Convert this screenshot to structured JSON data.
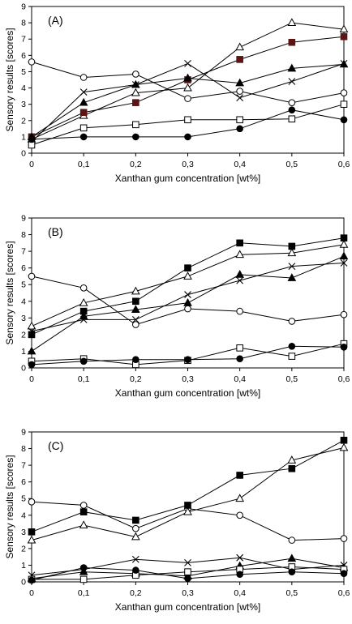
{
  "chart_data": [
    {
      "type": "line",
      "panel_label": "(A)",
      "xlabel": "Xanthan gum concentration [wt%]",
      "ylabel": "Sensory results [scores]",
      "x": [
        0,
        0.1,
        0.2,
        0.3,
        0.4,
        0.5,
        0.6
      ],
      "x_tick_labels": [
        "0",
        "0,1",
        "0,2",
        "0,3",
        "0,4",
        "0,5",
        "0,6"
      ],
      "ylim": [
        0,
        9
      ],
      "y_ticks": [
        "0",
        "1",
        "2",
        "3",
        "4",
        "5",
        "6",
        "7",
        "8",
        "9"
      ],
      "grid": false,
      "series": [
        {
          "marker": "circle-open",
          "values": [
            5.6,
            4.65,
            4.85,
            3.35,
            3.8,
            3.1,
            3.7
          ]
        },
        {
          "marker": "triangle-open",
          "values": [
            0.85,
            2.3,
            3.7,
            4.0,
            6.5,
            8.0,
            7.6
          ]
        },
        {
          "marker": "square-filled",
          "color": "#5a1515",
          "values": [
            1.0,
            2.5,
            3.1,
            4.5,
            5.75,
            6.8,
            7.15
          ]
        },
        {
          "marker": "triangle-filled",
          "values": [
            1.0,
            3.1,
            4.2,
            4.6,
            4.3,
            5.2,
            5.45
          ]
        },
        {
          "marker": "cross",
          "values": [
            0.7,
            3.75,
            4.2,
            5.5,
            3.4,
            4.4,
            5.5
          ]
        },
        {
          "marker": "square-open",
          "values": [
            0.5,
            1.55,
            1.75,
            2.05,
            2.05,
            2.1,
            3.0
          ]
        },
        {
          "marker": "circle-filled",
          "values": [
            0.85,
            1.0,
            1.0,
            1.0,
            1.5,
            2.65,
            2.05
          ]
        }
      ]
    },
    {
      "type": "line",
      "panel_label": "(B)",
      "xlabel": "Xanthan gum concentration [wt%]",
      "ylabel": "Sensory results [scores]",
      "x": [
        0,
        0.1,
        0.2,
        0.3,
        0.4,
        0.5,
        0.6
      ],
      "x_tick_labels": [
        "0",
        "0,1",
        "0,2",
        "0,3",
        "0,4",
        "0,5",
        "0,6"
      ],
      "ylim": [
        0,
        9
      ],
      "y_ticks": [
        "0",
        "1",
        "2",
        "3",
        "4",
        "5",
        "6",
        "7",
        "8",
        "9"
      ],
      "grid": false,
      "series": [
        {
          "marker": "circle-open",
          "values": [
            5.5,
            4.8,
            2.6,
            3.55,
            3.4,
            2.8,
            3.2
          ]
        },
        {
          "marker": "triangle-open",
          "values": [
            2.5,
            3.9,
            4.6,
            5.5,
            6.8,
            6.9,
            7.4
          ]
        },
        {
          "marker": "square-filled",
          "values": [
            2.0,
            3.4,
            4.0,
            6.0,
            7.5,
            7.3,
            7.8
          ]
        },
        {
          "marker": "triangle-filled",
          "values": [
            1.0,
            3.1,
            3.5,
            3.9,
            5.6,
            5.4,
            6.7
          ]
        },
        {
          "marker": "cross",
          "values": [
            2.2,
            2.9,
            2.9,
            4.4,
            5.25,
            6.1,
            6.3
          ]
        },
        {
          "marker": "square-open",
          "values": [
            0.4,
            0.55,
            0.2,
            0.45,
            1.2,
            0.7,
            1.45
          ]
        },
        {
          "marker": "circle-filled",
          "values": [
            0.2,
            0.4,
            0.5,
            0.5,
            0.55,
            1.3,
            1.25
          ]
        }
      ]
    },
    {
      "type": "line",
      "panel_label": "(C)",
      "xlabel": "Xanthan gum concentration [wt%]",
      "ylabel": "Sensory results [scores]",
      "x": [
        0,
        0.1,
        0.2,
        0.3,
        0.4,
        0.5,
        0.6
      ],
      "x_tick_labels": [
        "0",
        "0,1",
        "0,2",
        "0,3",
        "0,4",
        "0,5",
        "0,6"
      ],
      "ylim": [
        0,
        9
      ],
      "y_ticks": [
        "0",
        "1",
        "2",
        "3",
        "4",
        "5",
        "6",
        "7",
        "8",
        "9"
      ],
      "grid": false,
      "series": [
        {
          "marker": "circle-open",
          "values": [
            4.8,
            4.6,
            3.2,
            4.4,
            4.0,
            2.5,
            2.6
          ]
        },
        {
          "marker": "square-filled",
          "values": [
            3.0,
            4.2,
            3.7,
            4.6,
            6.4,
            6.8,
            8.5
          ]
        },
        {
          "marker": "triangle-open",
          "values": [
            2.5,
            3.4,
            2.7,
            4.2,
            5.0,
            7.3,
            8.05
          ]
        },
        {
          "marker": "cross",
          "values": [
            0.4,
            0.75,
            1.35,
            1.15,
            1.45,
            0.75,
            1.0
          ]
        },
        {
          "marker": "triangle-filled",
          "values": [
            0.2,
            0.6,
            0.5,
            0.35,
            0.95,
            1.4,
            0.85
          ]
        },
        {
          "marker": "square-open",
          "values": [
            0.15,
            0.15,
            0.4,
            0.6,
            0.75,
            0.9,
            0.75
          ]
        },
        {
          "marker": "circle-filled",
          "values": [
            0.1,
            0.85,
            0.7,
            0.2,
            0.45,
            0.6,
            0.5
          ]
        }
      ]
    }
  ]
}
